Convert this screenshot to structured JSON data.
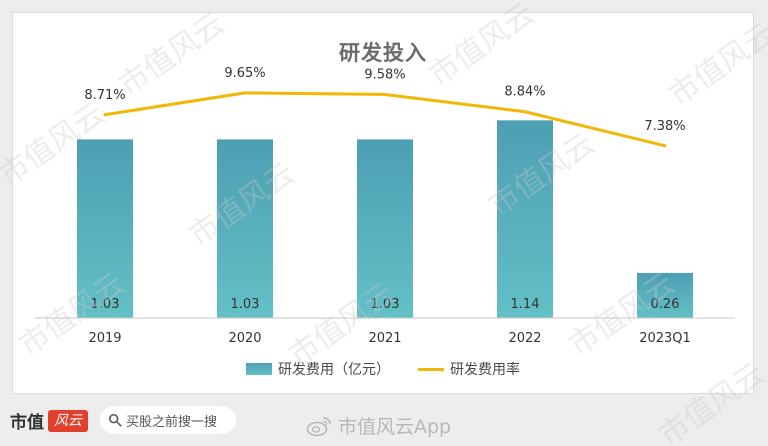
{
  "chart_data": {
    "type": "bar",
    "title": "研发投入",
    "categories": [
      "2019",
      "2020",
      "2021",
      "2022",
      "2023Q1"
    ],
    "series": [
      {
        "name": "研发费用（亿元）",
        "kind": "bar",
        "values": [
          1.03,
          1.03,
          1.03,
          1.14,
          0.26
        ],
        "value_labels": [
          "1.03",
          "1.03",
          "1.03",
          "1.14",
          "0.26"
        ]
      },
      {
        "name": "研发费用率",
        "kind": "line",
        "values": [
          8.71,
          9.65,
          9.58,
          8.84,
          7.38
        ],
        "value_labels": [
          "8.71%",
          "9.65%",
          "9.58%",
          "8.84%",
          "7.38%"
        ]
      }
    ],
    "bar_ylim": [
      0,
      1.24
    ],
    "line_ylim": [
      0,
      10.5
    ],
    "grid": false,
    "legend_position": "bottom",
    "colors": {
      "bar_top": "#4d9fb3",
      "bar_bottom": "#63c0c6",
      "line": "#f2b705",
      "axis": "#c8c8c8",
      "label": "#333333"
    }
  },
  "footer": {
    "brand_text": "市值",
    "brand_badge_text": "风云",
    "search_placeholder": "买股之前搜一搜",
    "app_watermark": "市值风云App",
    "search_icon": "search-icon",
    "weibo_icon": "weibo-icon"
  },
  "watermark_text": "市值风云"
}
